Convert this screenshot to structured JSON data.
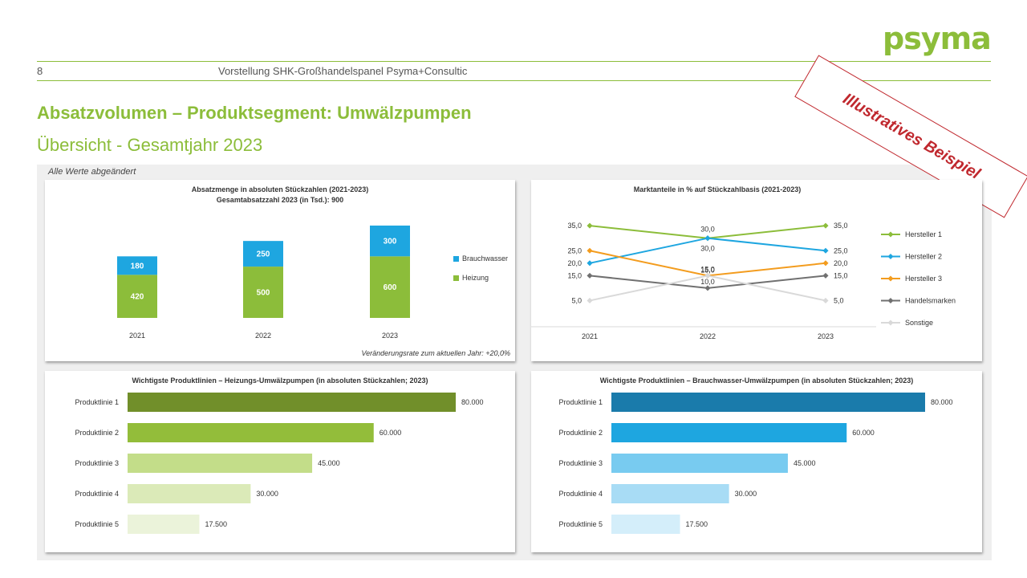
{
  "brand": {
    "logo_text": "psyma",
    "accent": "#8cbd3a"
  },
  "header": {
    "page_number": "8",
    "title": "Vorstellung SHK-Großhandelspanel Psyma+Consultic"
  },
  "slide": {
    "title": "Absatzvolumen – Produktsegment: Umwälzpumpen",
    "subtitle": "Übersicht - Gesamtjahr 2023",
    "stamp": "Illustratives Beispiel",
    "note": "Alle Werte abgeändert"
  },
  "chart_data": [
    {
      "type": "bar",
      "stacked": true,
      "title": "Absatzmenge in absoluten Stückzahlen (2021-2023)",
      "subtitle": "Gesamtabsatzzahl 2023 (in Tsd.): 900",
      "categories": [
        "2021",
        "2022",
        "2023"
      ],
      "series": [
        {
          "name": "Heizung",
          "color": "#8cbd3a",
          "values": [
            420,
            500,
            600
          ]
        },
        {
          "name": "Brauchwasser",
          "color": "#1ea6e0",
          "values": [
            180,
            250,
            300
          ]
        }
      ],
      "legend": "right",
      "footnote": "Veränderungsrate zum aktuellen Jahr: +20,0%"
    },
    {
      "type": "line",
      "title": "Marktanteile in % auf Stückzahlbasis (2021-2023)",
      "categories": [
        "2021",
        "2022",
        "2023"
      ],
      "ylim": [
        0,
        40
      ],
      "series": [
        {
          "name": "Hersteller 1",
          "color": "#8cbd3a",
          "values": [
            35.0,
            30.0,
            35.0
          ]
        },
        {
          "name": "Hersteller 2",
          "color": "#1ea6e0",
          "values": [
            20.0,
            30.0,
            25.0
          ]
        },
        {
          "name": "Hersteller 3",
          "color": "#f39c1e",
          "values": [
            25.0,
            15.0,
            20.0
          ]
        },
        {
          "name": "Handelsmarken",
          "color": "#707070",
          "values": [
            15.0,
            10.0,
            15.0
          ]
        },
        {
          "name": "Sonstige",
          "color": "#d9d9d9",
          "values": [
            5.0,
            15.0,
            5.0
          ]
        }
      ],
      "legend": "right"
    },
    {
      "type": "bar",
      "orientation": "horizontal",
      "title": "Wichtigste Produktlinien – Heizungs-Umwälzpumpen (in absoluten Stückzahlen; 2023)",
      "categories": [
        "Produktlinie 1",
        "Produktlinie 2",
        "Produktlinie 3",
        "Produktlinie 4",
        "Produktlinie 5"
      ],
      "values": [
        80000,
        60000,
        45000,
        30000,
        17500
      ],
      "labels": [
        "80.000",
        "60.000",
        "45.000",
        "30.000",
        "17.500"
      ],
      "colors": [
        "#718f2a",
        "#93bd3a",
        "#c3dd89",
        "#dbeab8",
        "#ebf3da"
      ],
      "xlim": [
        0,
        80000
      ]
    },
    {
      "type": "bar",
      "orientation": "horizontal",
      "title": "Wichtigste Produktlinien – Brauchwasser-Umwälzpumpen (in absoluten Stückzahlen; 2023)",
      "categories": [
        "Produktlinie 1",
        "Produktlinie 2",
        "Produktlinie 3",
        "Produktlinie 4",
        "Produktlinie 5"
      ],
      "values": [
        80000,
        60000,
        45000,
        30000,
        17500
      ],
      "labels": [
        "80.000",
        "60.000",
        "45.000",
        "30.000",
        "17.500"
      ],
      "colors": [
        "#1a7bab",
        "#1ea6e0",
        "#78cbf0",
        "#a8dcf5",
        "#d4eefa"
      ],
      "xlim": [
        0,
        80000
      ]
    }
  ]
}
